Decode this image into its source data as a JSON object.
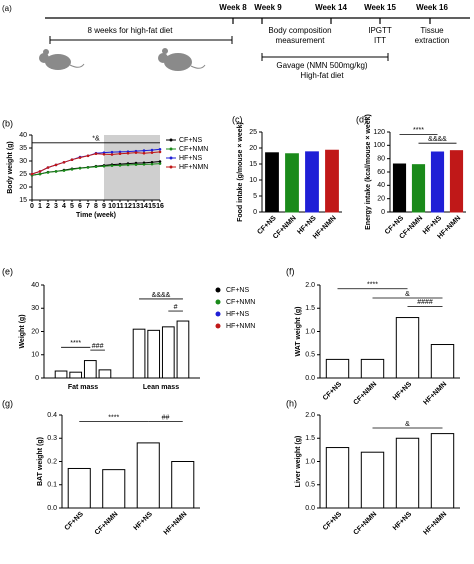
{
  "timeline": {
    "panel_label": "(a)",
    "weeks": [
      "Week 8",
      "Week 9",
      "Week 14",
      "Week 15",
      "Week 16"
    ],
    "phase_1": "8 weeks for high-fat diet",
    "events": [
      [
        "Body composition",
        "measurement"
      ],
      [
        "IPGTT",
        "ITT"
      ],
      [
        "Tissue",
        "extraction"
      ]
    ],
    "treatment": "Gavage (NMN 500mg/kg)",
    "diet": "High-fat diet"
  },
  "chart_data": [
    {
      "type": "line",
      "panel_label": "(b)",
      "ylabel": "Body weight (g)",
      "xlabel": "Time (week)",
      "x": [
        0,
        1,
        2,
        3,
        4,
        5,
        6,
        7,
        8,
        9,
        10,
        11,
        12,
        13,
        14,
        15,
        16
      ],
      "xlim": [
        0,
        16
      ],
      "xticks": [
        0,
        1,
        2,
        3,
        4,
        5,
        6,
        7,
        8,
        9,
        10,
        11,
        12,
        13,
        14,
        15,
        16
      ],
      "ylim": [
        15,
        40
      ],
      "yticks": [
        15,
        20,
        25,
        30,
        35,
        40
      ],
      "shade": [
        9,
        16
      ],
      "annotations": [
        "*&"
      ],
      "series": [
        {
          "name": "CF+NS",
          "color": "#000000",
          "values": [
            24.5,
            25,
            25.7,
            26,
            26.5,
            27,
            27.3,
            27.6,
            28,
            28.3,
            28.6,
            28.8,
            29,
            29.2,
            29.3,
            29.5,
            29.8
          ]
        },
        {
          "name": "CF+NMN",
          "color": "#1a8a1a",
          "values": [
            24.5,
            25,
            25.6,
            26,
            26.3,
            26.8,
            27.2,
            27.5,
            27.8,
            28,
            28.2,
            28.3,
            28.5,
            28.6,
            28.7,
            28.8,
            29
          ]
        },
        {
          "name": "HF+NS",
          "color": "#1f1fd6",
          "values": [
            25,
            26,
            27.5,
            28.5,
            29.5,
            30.5,
            31.5,
            32,
            33,
            33.2,
            33.4,
            33.5,
            33.6,
            33.8,
            34,
            34.2,
            34.5
          ]
        },
        {
          "name": "HF+NMN",
          "color": "#c01818",
          "values": [
            25,
            26,
            27.5,
            28.5,
            29.5,
            30.5,
            31.3,
            32,
            32.8,
            32.6,
            32.5,
            32.8,
            33,
            33.2,
            33,
            33.2,
            33.5
          ]
        }
      ]
    },
    {
      "type": "bar",
      "panel_label": "(c)",
      "ylabel": "Food intake (g/mouse × week)",
      "categories": [
        "CF+NS",
        "CF+NMN",
        "HF+NS",
        "HF+NMN"
      ],
      "values": [
        18.5,
        18.2,
        18.8,
        19.3
      ],
      "colors": [
        "#000000",
        "#1a8a1a",
        "#1f1fd6",
        "#c01818"
      ],
      "bar_style": "filled",
      "ylim": [
        0,
        25
      ],
      "yticks": [
        0,
        5,
        10,
        15,
        20,
        25
      ],
      "annotations": []
    },
    {
      "type": "bar",
      "panel_label": "(d)",
      "ylabel": "Energy intake (kcal/mouse × week)",
      "categories": [
        "CF+NS",
        "CF+NMN",
        "HF+NS",
        "HF+NMN"
      ],
      "values": [
        72,
        71,
        90,
        92
      ],
      "colors": [
        "#000000",
        "#1a8a1a",
        "#1f1fd6",
        "#c01818"
      ],
      "bar_style": "filled",
      "ylim": [
        0,
        120
      ],
      "yticks": [
        0,
        20,
        40,
        60,
        80,
        100,
        120
      ],
      "annotations": [
        "****",
        "&&&&"
      ]
    },
    {
      "type": "grouped_bar",
      "panel_label": "(e)",
      "ylabel": "Weight (g)",
      "categories": [
        "Fat mass",
        "Lean mass"
      ],
      "ylim": [
        0,
        40
      ],
      "yticks": [
        0,
        10,
        20,
        30,
        40
      ],
      "annotations": [
        "****",
        "###",
        "&&&&",
        "#"
      ],
      "series": [
        {
          "name": "CF+NS",
          "color": "#000000",
          "values": [
            3,
            21
          ]
        },
        {
          "name": "CF+NMN",
          "color": "#1a8a1a",
          "values": [
            2.5,
            20.5
          ]
        },
        {
          "name": "HF+NS",
          "color": "#1f1fd6",
          "values": [
            7.5,
            22
          ]
        },
        {
          "name": "HF+NMN",
          "color": "#c01818",
          "values": [
            3.5,
            24.5
          ]
        }
      ]
    },
    {
      "type": "bar",
      "panel_label": "(f)",
      "ylabel": "WAT weight (g)",
      "categories": [
        "CF+NS",
        "CF+NMN",
        "HF+NS",
        "HF+NMN"
      ],
      "values": [
        0.4,
        0.4,
        1.3,
        0.72
      ],
      "colors": [
        "#000000",
        "#1a8a1a",
        "#1f1fd6",
        "#c01818"
      ],
      "bar_style": "outline",
      "ylim": [
        0,
        2
      ],
      "yticks": [
        {
          "value": 0,
          "label": "0.0"
        },
        0.5,
        {
          "value": 1,
          "label": "1.0"
        },
        1.5,
        {
          "value": 2,
          "label": "2.0"
        }
      ],
      "annotations": [
        "****",
        "&",
        "####"
      ]
    },
    {
      "type": "bar",
      "panel_label": "(g)",
      "ylabel": "BAT weight (g)",
      "categories": [
        "CF+NS",
        "CF+NMN",
        "HF+NS",
        "HF+NMN"
      ],
      "values": [
        0.17,
        0.165,
        0.28,
        0.2
      ],
      "colors": [
        "#000000",
        "#1a8a1a",
        "#1f1fd6",
        "#c01818"
      ],
      "bar_style": "outline",
      "ylim": [
        0,
        0.4
      ],
      "yticks": [
        {
          "value": 0,
          "label": "0.0"
        },
        0.1,
        0.2,
        0.3,
        0.4
      ],
      "annotations": [
        "****",
        "##"
      ]
    },
    {
      "type": "bar",
      "panel_label": "(h)",
      "ylabel": "Liver weight (g)",
      "categories": [
        "CF+NS",
        "CF+NMN",
        "HF+NS",
        "HF+NMN"
      ],
      "values": [
        1.3,
        1.2,
        1.5,
        1.6
      ],
      "colors": [
        "#000000",
        "#1a8a1a",
        "#1f1fd6",
        "#c01818"
      ],
      "bar_style": "outline",
      "ylim": [
        0,
        2
      ],
      "yticks": [
        {
          "value": 0,
          "label": "0.0"
        },
        0.5,
        {
          "value": 1,
          "label": "1.0"
        },
        1.5,
        {
          "value": 2,
          "label": "2.0"
        }
      ],
      "annotations": [
        "&"
      ]
    }
  ]
}
